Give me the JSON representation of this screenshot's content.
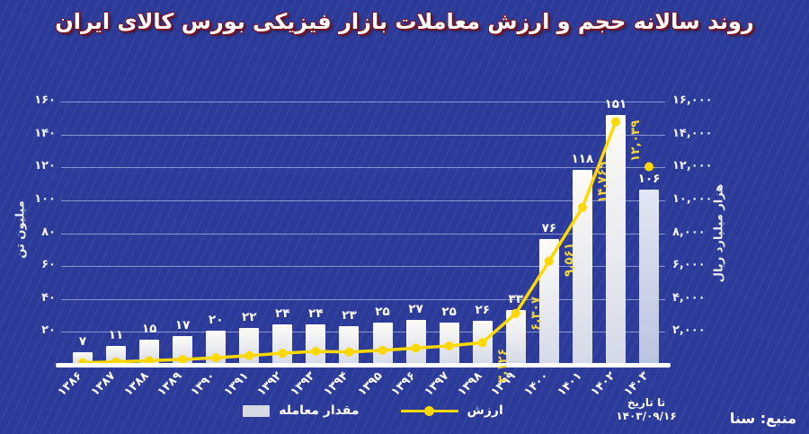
{
  "title": "روند سالانه حجم و ارزش معاملات بازار فیزیکی بورس کالای ایران",
  "source_label": "منبع: سنا",
  "note": {
    "line1": "تا تاریخ",
    "line2": "۱۴۰۳/۰۹/۱۶"
  },
  "legend": {
    "bar_label": "مقدار معامله",
    "line_label": "ارزش"
  },
  "axes": {
    "left": {
      "title": "میلیون تن",
      "max": 160,
      "ticks": [
        "۲۰",
        "۴۰",
        "۶۰",
        "۸۰",
        "۱۰۰",
        "۱۲۰",
        "۱۴۰",
        "۱۶۰"
      ],
      "tick_values": [
        20,
        40,
        60,
        80,
        100,
        120,
        140,
        160
      ]
    },
    "right": {
      "title": "هزار میلیارد ریال",
      "max": 16000,
      "ticks": [
        "۲,۰۰۰",
        "۴,۰۰۰",
        "۶,۰۰۰",
        "۸,۰۰۰",
        "۱۰,۰۰۰",
        "۱۲,۰۰۰",
        "۱۴,۰۰۰",
        "۱۶,۰۰۰"
      ],
      "tick_values": [
        2000,
        4000,
        6000,
        8000,
        10000,
        12000,
        14000,
        16000
      ]
    }
  },
  "colors": {
    "background": "#2c3b99",
    "bar": "#e9eaef",
    "bar_last_muted": "#bcc6de",
    "line": "#ffd800",
    "line_label": "#f2d43c",
    "grid": "#d7defa",
    "title_outline": "#7c1623",
    "text": "#ffffff"
  },
  "chart_data": {
    "type": "bar+line",
    "title": "روند سالانه حجم و ارزش معاملات بازار فیزیکی بورس کالای ایران",
    "categories": [
      "۱۳۸۶",
      "۱۳۸۷",
      "۱۳۸۸",
      "۱۳۸۹",
      "۱۳۹۰",
      "۱۳۹۱",
      "۱۳۹۲",
      "۱۳۹۳",
      "۱۳۹۴",
      "۱۳۹۵",
      "۱۳۹۶",
      "۱۳۹۷",
      "۱۳۹۸",
      "۱۳۹۹",
      "۱۴۰۰",
      "۱۴۰۱",
      "۱۴۰۲",
      "۱۴۰۳"
    ],
    "ylim_left": [
      0,
      160
    ],
    "ylim_right": [
      0,
      16000
    ],
    "grid": true,
    "legend_position": "bottom",
    "series": [
      {
        "name": "مقدار معامله",
        "type": "bar",
        "axis": "left",
        "values": [
          7,
          11,
          15,
          17,
          20,
          22,
          24,
          24,
          23,
          25,
          27,
          25,
          26,
          33,
          76,
          118,
          151,
          106
        ],
        "labels": [
          "۷",
          "۱۱",
          "۱۵",
          "۱۷",
          "۲۰",
          "۲۲",
          "۲۴",
          "۲۴",
          "۲۳",
          "۲۵",
          "۲۷",
          "۲۵",
          "۲۶",
          "۳۳",
          "۷۶",
          "۱۱۸",
          "۱۵۱",
          "۱۰۶"
        ]
      },
      {
        "name": "ارزش",
        "type": "line",
        "axis": "right",
        "values": [
          130,
          180,
          250,
          330,
          430,
          560,
          700,
          820,
          780,
          880,
          1020,
          1150,
          1350,
          3126,
          6307,
          9561,
          14769,
          12039
        ],
        "labels": [
          null,
          null,
          null,
          null,
          null,
          null,
          null,
          null,
          null,
          null,
          null,
          null,
          null,
          "۳,۱۲۶",
          "۶,۳۰۷",
          "۹,۵۶۱",
          "۱۴,۷۶۹",
          "۱۲,۰۳۹"
        ],
        "values_estimated_for_unlabeled_points": true,
        "last_point_isolated": true
      }
    ]
  }
}
